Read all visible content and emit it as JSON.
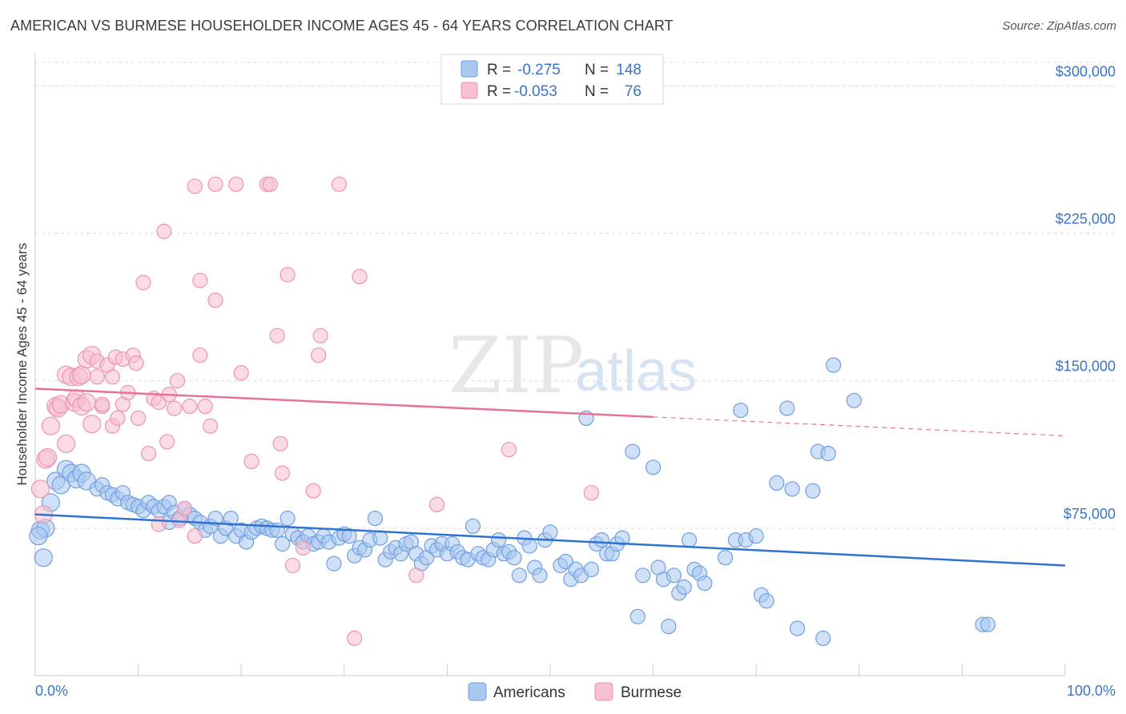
{
  "header": {
    "title": "AMERICAN VS BURMESE HOUSEHOLDER INCOME AGES 45 - 64 YEARS CORRELATION CHART",
    "source": "Source: ZipAtlas.com"
  },
  "watermark": {
    "zip": "ZIP",
    "atlas": "atlas"
  },
  "colors": {
    "americans_fill": "#a9c8f0",
    "americans_stroke": "#6f9fe0",
    "americans_line": "#2f72d0",
    "burmese_fill": "#f7bfd0",
    "burmese_stroke": "#ee93b0",
    "burmese_line": "#e8739a",
    "axis_label": "#3a74c8",
    "grid": "#d9d9d9"
  },
  "legend": {
    "rows": [
      {
        "r_label": "R =",
        "r_value": "-0.275",
        "n_label": "N =",
        "n_value": "148"
      },
      {
        "r_label": "R =",
        "r_value": "-0.053",
        "n_label": "N =",
        "n_value": "76"
      }
    ]
  },
  "bottom_legend": {
    "americans": "Americans",
    "burmese": "Burmese"
  },
  "chart_data": {
    "type": "scatter",
    "title": "AMERICAN VS BURMESE HOUSEHOLDER INCOME AGES 45 - 64 YEARS CORRELATION CHART",
    "xlabel": "",
    "ylabel": "Householder Income Ages 45 - 64 years",
    "xlim": [
      0,
      100
    ],
    "ylim": [
      0,
      312000
    ],
    "x_tick_labels": [
      "0.0%",
      "100.0%"
    ],
    "y_ticks": [
      75000,
      150000,
      225000,
      300000
    ],
    "y_tick_labels": [
      "$75,000",
      "$150,000",
      "$225,000",
      "$300,000"
    ],
    "grid": true,
    "legend_position": "top-center",
    "series": [
      {
        "name": "Americans",
        "r": -0.275,
        "n": 148,
        "trend": {
          "x": [
            0,
            100
          ],
          "y": [
            82000,
            56000
          ]
        },
        "points": [
          [
            0.5,
            74000
          ],
          [
            1,
            75000
          ],
          [
            1.5,
            88000
          ],
          [
            2,
            99000
          ],
          [
            2.5,
            97000
          ],
          [
            3,
            105000
          ],
          [
            3.5,
            103000
          ],
          [
            4,
            100000
          ],
          [
            4.5,
            103000
          ],
          [
            5,
            99000
          ],
          [
            6,
            95000
          ],
          [
            6.5,
            97000
          ],
          [
            7,
            93000
          ],
          [
            7.5,
            92000
          ],
          [
            8,
            90000
          ],
          [
            8.5,
            93000
          ],
          [
            9,
            88000
          ],
          [
            9.5,
            87000
          ],
          [
            10,
            86000
          ],
          [
            10.5,
            84000
          ],
          [
            11,
            88000
          ],
          [
            11.5,
            86000
          ],
          [
            12,
            84000
          ],
          [
            12.5,
            86000
          ],
          [
            13,
            88000
          ],
          [
            13,
            78000
          ],
          [
            13.5,
            83000
          ],
          [
            14,
            80000
          ],
          [
            14.5,
            85000
          ],
          [
            15,
            82000
          ],
          [
            15.5,
            80000
          ],
          [
            16,
            78000
          ],
          [
            16.5,
            74000
          ],
          [
            17,
            76000
          ],
          [
            17.5,
            80000
          ],
          [
            18,
            71000
          ],
          [
            18.5,
            75000
          ],
          [
            19,
            80000
          ],
          [
            19.5,
            71000
          ],
          [
            20,
            74000
          ],
          [
            20.5,
            68000
          ],
          [
            21,
            73000
          ],
          [
            21.5,
            75000
          ],
          [
            22,
            76000
          ],
          [
            22.5,
            75000
          ],
          [
            23,
            74000
          ],
          [
            23.5,
            74000
          ],
          [
            24,
            67000
          ],
          [
            24.5,
            80000
          ],
          [
            25,
            72000
          ],
          [
            25.5,
            70000
          ],
          [
            26,
            68000
          ],
          [
            26.5,
            71000
          ],
          [
            27,
            67000
          ],
          [
            27.5,
            68000
          ],
          [
            28,
            71000
          ],
          [
            28.5,
            68000
          ],
          [
            29,
            57000
          ],
          [
            29.5,
            70000
          ],
          [
            30,
            72000
          ],
          [
            30.5,
            71000
          ],
          [
            31,
            61000
          ],
          [
            31.5,
            65000
          ],
          [
            32,
            64000
          ],
          [
            32.5,
            69000
          ],
          [
            33,
            80000
          ],
          [
            33.5,
            70000
          ],
          [
            34,
            59000
          ],
          [
            34.5,
            63000
          ],
          [
            35,
            65000
          ],
          [
            35.5,
            62000
          ],
          [
            36,
            67000
          ],
          [
            36.5,
            68000
          ],
          [
            37,
            62000
          ],
          [
            37.5,
            57000
          ],
          [
            38,
            60000
          ],
          [
            38.5,
            66000
          ],
          [
            39,
            64000
          ],
          [
            39.5,
            67000
          ],
          [
            40,
            62000
          ],
          [
            40.5,
            67000
          ],
          [
            41,
            63000
          ],
          [
            41.5,
            60000
          ],
          [
            42,
            59000
          ],
          [
            42.5,
            76000
          ],
          [
            43,
            62000
          ],
          [
            43.5,
            60000
          ],
          [
            44,
            59000
          ],
          [
            44.5,
            64000
          ],
          [
            45,
            69000
          ],
          [
            45.5,
            62000
          ],
          [
            46,
            63000
          ],
          [
            46.5,
            60000
          ],
          [
            47,
            51000
          ],
          [
            47.5,
            70000
          ],
          [
            48,
            66000
          ],
          [
            48.5,
            55000
          ],
          [
            49,
            51000
          ],
          [
            49.5,
            69000
          ],
          [
            50,
            73000
          ],
          [
            51,
            56000
          ],
          [
            51.5,
            58000
          ],
          [
            52,
            49000
          ],
          [
            52.5,
            54000
          ],
          [
            53,
            51000
          ],
          [
            53.5,
            131000
          ],
          [
            54,
            54000
          ],
          [
            54.5,
            67000
          ],
          [
            55,
            69000
          ],
          [
            55.5,
            62000
          ],
          [
            56,
            62000
          ],
          [
            56.5,
            67000
          ],
          [
            57,
            70000
          ],
          [
            58,
            114000
          ],
          [
            58.5,
            30000
          ],
          [
            59,
            51000
          ],
          [
            60,
            106000
          ],
          [
            60.5,
            55000
          ],
          [
            61,
            49000
          ],
          [
            61.5,
            25000
          ],
          [
            62,
            51000
          ],
          [
            62.5,
            42000
          ],
          [
            63,
            45000
          ],
          [
            63.5,
            69000
          ],
          [
            64,
            54000
          ],
          [
            64.5,
            52000
          ],
          [
            65,
            47000
          ],
          [
            67,
            60000
          ],
          [
            68,
            69000
          ],
          [
            68.5,
            135000
          ],
          [
            69,
            69000
          ],
          [
            70,
            71000
          ],
          [
            70.5,
            41000
          ],
          [
            71,
            38000
          ],
          [
            72,
            98000
          ],
          [
            73,
            136000
          ],
          [
            73.5,
            95000
          ],
          [
            74,
            24000
          ],
          [
            75.5,
            94000
          ],
          [
            76,
            114000
          ],
          [
            76.5,
            19000
          ],
          [
            77,
            113000
          ],
          [
            77.5,
            158000
          ],
          [
            79.5,
            140000
          ],
          [
            92,
            26000
          ],
          [
            92.5,
            26000
          ],
          [
            0.3,
            71000
          ],
          [
            0.8,
            60000
          ]
        ]
      },
      {
        "name": "Burmese",
        "r": -0.053,
        "n": 76,
        "trend": {
          "x": [
            0,
            100
          ],
          "y": [
            146000,
            122000
          ],
          "solid_until": 60
        },
        "points": [
          [
            0.5,
            95000
          ],
          [
            0.8,
            82000
          ],
          [
            1,
            110000
          ],
          [
            1.2,
            111000
          ],
          [
            1.5,
            127000
          ],
          [
            2,
            137000
          ],
          [
            2.2,
            136000
          ],
          [
            2.5,
            138000
          ],
          [
            3,
            153000
          ],
          [
            3,
            118000
          ],
          [
            3.5,
            152000
          ],
          [
            3.8,
            139000
          ],
          [
            4,
            141000
          ],
          [
            4.2,
            152000
          ],
          [
            4.5,
            153000
          ],
          [
            4.5,
            137000
          ],
          [
            5,
            139000
          ],
          [
            5,
            161000
          ],
          [
            5.5,
            163000
          ],
          [
            5.5,
            128000
          ],
          [
            6,
            160000
          ],
          [
            6,
            152000
          ],
          [
            6.5,
            137000
          ],
          [
            6.5,
            138000
          ],
          [
            7,
            158000
          ],
          [
            7.5,
            152000
          ],
          [
            7.5,
            127000
          ],
          [
            7.8,
            162000
          ],
          [
            8,
            131000
          ],
          [
            8.5,
            138000
          ],
          [
            8.5,
            161000
          ],
          [
            9,
            144000
          ],
          [
            9.5,
            163000
          ],
          [
            9.8,
            159000
          ],
          [
            10,
            131000
          ],
          [
            10.5,
            200000
          ],
          [
            11,
            113000
          ],
          [
            11.5,
            141000
          ],
          [
            12,
            139000
          ],
          [
            12,
            77000
          ],
          [
            12.5,
            226000
          ],
          [
            12.8,
            119000
          ],
          [
            13,
            143000
          ],
          [
            13.5,
            136000
          ],
          [
            13.8,
            150000
          ],
          [
            14,
            79000
          ],
          [
            14.5,
            85000
          ],
          [
            15,
            137000
          ],
          [
            15.5,
            249000
          ],
          [
            15.5,
            71000
          ],
          [
            16,
            163000
          ],
          [
            16,
            201000
          ],
          [
            16.5,
            137000
          ],
          [
            17,
            127000
          ],
          [
            17.5,
            250000
          ],
          [
            17.5,
            191000
          ],
          [
            19.5,
            250000
          ],
          [
            20,
            154000
          ],
          [
            21,
            109000
          ],
          [
            22.5,
            250000
          ],
          [
            22.8,
            250000
          ],
          [
            23.5,
            173000
          ],
          [
            23.8,
            118000
          ],
          [
            24,
            103000
          ],
          [
            24.5,
            204000
          ],
          [
            25,
            56000
          ],
          [
            26,
            65000
          ],
          [
            27,
            94000
          ],
          [
            27.5,
            163000
          ],
          [
            27.7,
            173000
          ],
          [
            29.5,
            250000
          ],
          [
            31,
            19000
          ],
          [
            31.5,
            203000
          ],
          [
            37,
            51000
          ],
          [
            39,
            87000
          ],
          [
            46,
            115000
          ],
          [
            54,
            93000
          ]
        ]
      }
    ]
  }
}
